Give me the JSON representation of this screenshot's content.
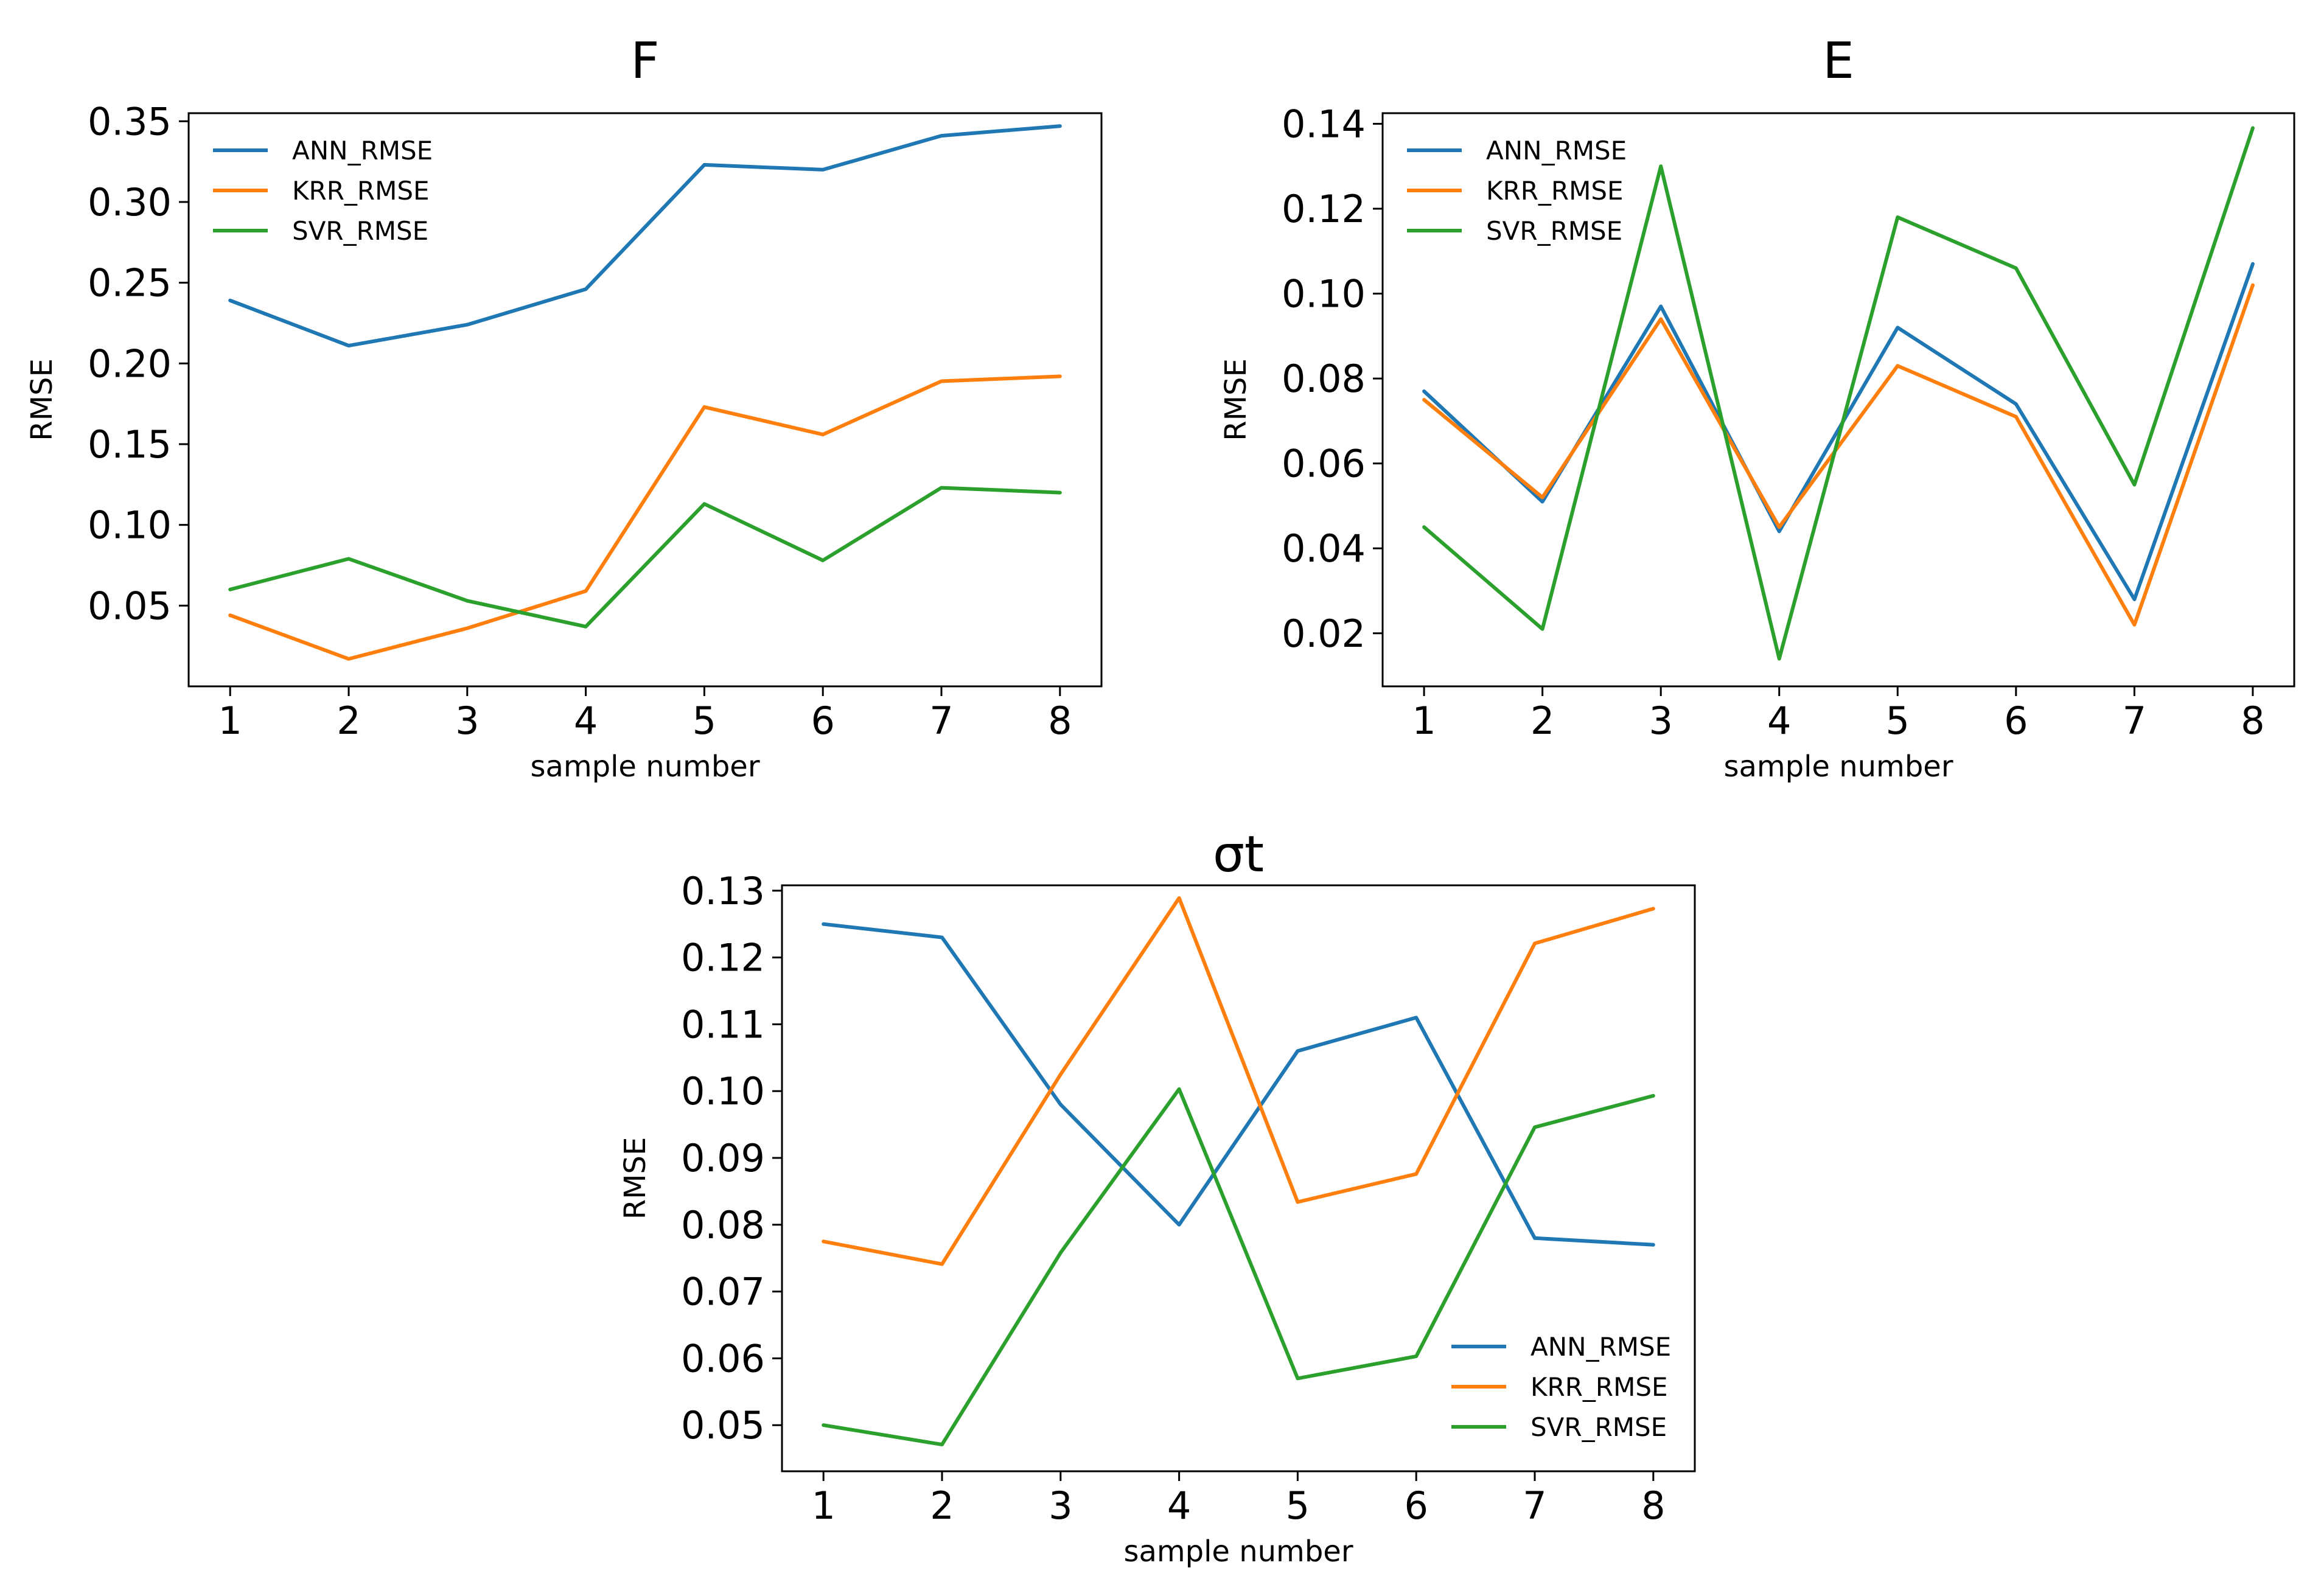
{
  "chart_data": [
    {
      "type": "line",
      "title": "F",
      "xlabel": "sample number",
      "ylabel": "RMSE",
      "x": [
        1,
        2,
        3,
        4,
        5,
        6,
        7,
        8
      ],
      "x_ticks": [
        "1",
        "2",
        "3",
        "4",
        "5",
        "6",
        "7",
        "8"
      ],
      "xlim": [
        0.65,
        8.35
      ],
      "ylim": [
        0.0,
        0.355
      ],
      "y_ticks": [
        "0.05",
        "0.10",
        "0.15",
        "0.20",
        "0.25",
        "0.30",
        "0.35"
      ],
      "legend": "top-left",
      "grid": false,
      "series": [
        {
          "name": "ANN_RMSE",
          "color": "#1f77b4",
          "values": [
            0.239,
            0.211,
            0.224,
            0.246,
            0.323,
            0.32,
            0.341,
            0.347
          ]
        },
        {
          "name": "KRR_RMSE",
          "color": "#ff7f0e",
          "values": [
            0.044,
            0.017,
            0.036,
            0.059,
            0.173,
            0.156,
            0.189,
            0.192
          ]
        },
        {
          "name": "SVR_RMSE",
          "color": "#2ca02c",
          "values": [
            0.06,
            0.079,
            0.053,
            0.037,
            0.113,
            0.078,
            0.123,
            0.12
          ]
        }
      ]
    },
    {
      "type": "line",
      "title": "E",
      "xlabel": "sample number",
      "ylabel": "RMSE",
      "x": [
        1,
        2,
        3,
        4,
        5,
        6,
        7,
        8
      ],
      "x_ticks": [
        "1",
        "2",
        "3",
        "4",
        "5",
        "6",
        "7",
        "8"
      ],
      "xlim": [
        0.65,
        8.35
      ],
      "ylim": [
        0.0075,
        0.1425
      ],
      "y_ticks": [
        "0.02",
        "0.04",
        "0.06",
        "0.08",
        "0.10",
        "0.12",
        "0.14"
      ],
      "legend": "top-left",
      "grid": false,
      "series": [
        {
          "name": "ANN_RMSE",
          "color": "#1f77b4",
          "values": [
            0.077,
            0.051,
            0.097,
            0.044,
            0.092,
            0.074,
            0.028,
            0.107
          ]
        },
        {
          "name": "KRR_RMSE",
          "color": "#ff7f0e",
          "values": [
            0.075,
            0.052,
            0.094,
            0.045,
            0.083,
            0.071,
            0.022,
            0.102
          ]
        },
        {
          "name": "SVR_RMSE",
          "color": "#2ca02c",
          "values": [
            0.045,
            0.021,
            0.13,
            0.014,
            0.118,
            0.106,
            0.055,
            0.139
          ]
        }
      ]
    },
    {
      "type": "line",
      "title": "σt",
      "xlabel": "sample number",
      "ylabel": "RMSE",
      "x": [
        1,
        2,
        3,
        4,
        5,
        6,
        7,
        8
      ],
      "x_ticks": [
        "1",
        "2",
        "3",
        "4",
        "5",
        "6",
        "7",
        "8"
      ],
      "xlim": [
        0.65,
        8.35
      ],
      "ylim": [
        0.0431,
        0.1308
      ],
      "y_ticks": [
        "0.05",
        "0.06",
        "0.07",
        "0.08",
        "0.09",
        "0.10",
        "0.11",
        "0.12",
        "0.13"
      ],
      "legend": "bottom-right",
      "grid": false,
      "series": [
        {
          "name": "ANN_RMSE",
          "color": "#1f77b4",
          "values": [
            0.125,
            0.123,
            0.098,
            0.08,
            0.106,
            0.111,
            0.078,
            0.077
          ]
        },
        {
          "name": "KRR_RMSE",
          "color": "#ff7f0e",
          "values": [
            0.0775,
            0.0741,
            0.1025,
            0.1289,
            0.0834,
            0.0876,
            0.1221,
            0.1273
          ]
        },
        {
          "name": "SVR_RMSE",
          "color": "#2ca02c",
          "values": [
            0.05,
            0.0471,
            0.0758,
            0.1003,
            0.057,
            0.0603,
            0.0946,
            0.0993
          ]
        }
      ]
    }
  ]
}
